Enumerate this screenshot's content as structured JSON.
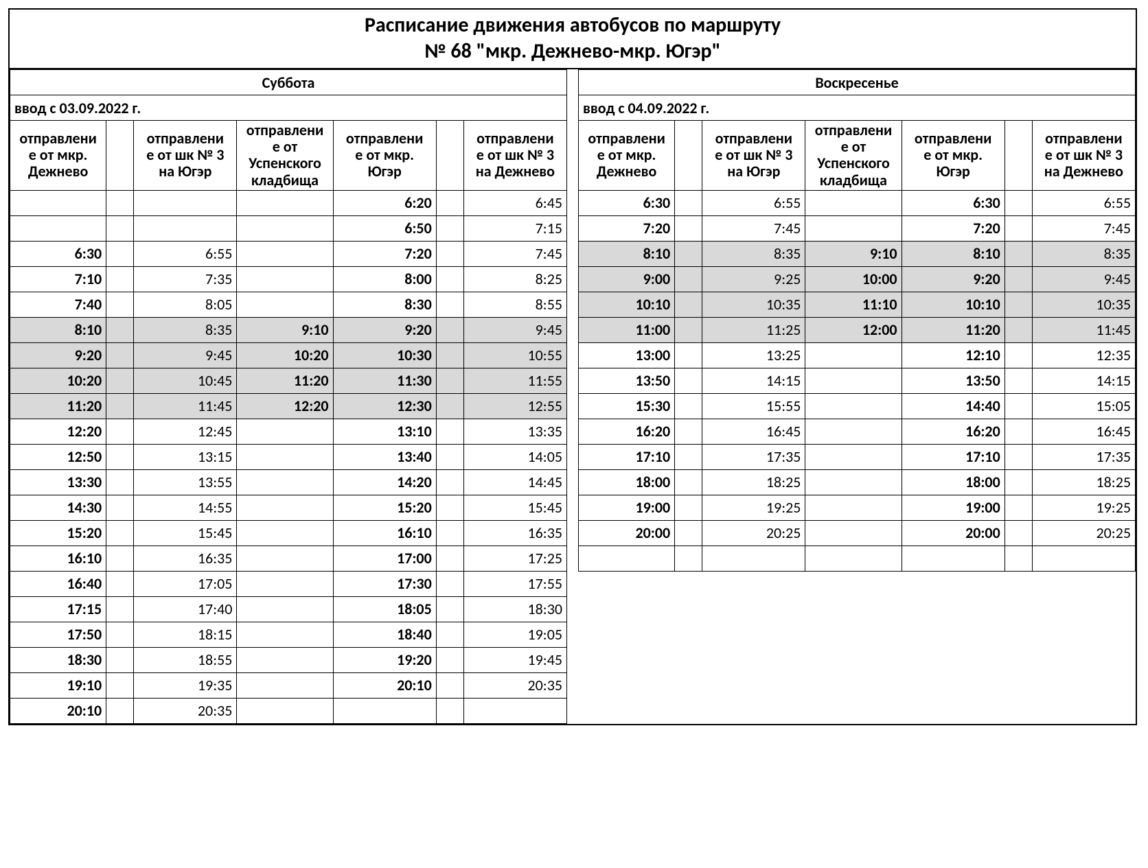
{
  "title_line1": "Расписание движения автобусов по маршруту",
  "title_line2": "№ 68     \"мкр. Дежнево-мкр. Югэр\"",
  "shaded_color": "#d9d9d9",
  "border_color": "#000000",
  "background_color": "#ffffff",
  "font_family": "Calibri, Arial, sans-serif",
  "saturday": {
    "day_label": "Суббота",
    "intro": "ввод  с 03.09.2022 г.",
    "headers": [
      "отправление от мкр. Дежнево",
      "",
      "отправление от шк № 3 на Югэр",
      "отправление от Успенского кладбища",
      "отправление от мкр. Югэр",
      "",
      "отправление от шк № 3 на Дежнево"
    ],
    "bold_cols": [
      true,
      false,
      false,
      true,
      true,
      false,
      false
    ],
    "rows": [
      {
        "cells": [
          "",
          "",
          "",
          "",
          "6:20",
          "",
          "6:45"
        ],
        "shaded": false
      },
      {
        "cells": [
          "",
          "",
          "",
          "",
          "6:50",
          "",
          "7:15"
        ],
        "shaded": false
      },
      {
        "cells": [
          "6:30",
          "",
          "6:55",
          "",
          "7:20",
          "",
          "7:45"
        ],
        "shaded": false
      },
      {
        "cells": [
          "7:10",
          "",
          "7:35",
          "",
          "8:00",
          "",
          "8:25"
        ],
        "shaded": false
      },
      {
        "cells": [
          "7:40",
          "",
          "8:05",
          "",
          "8:30",
          "",
          "8:55"
        ],
        "shaded": false
      },
      {
        "cells": [
          "8:10",
          "",
          "8:35",
          "9:10",
          "9:20",
          "",
          "9:45"
        ],
        "shaded": true
      },
      {
        "cells": [
          "9:20",
          "",
          "9:45",
          "10:20",
          "10:30",
          "",
          "10:55"
        ],
        "shaded": true
      },
      {
        "cells": [
          "10:20",
          "",
          "10:45",
          "11:20",
          "11:30",
          "",
          "11:55"
        ],
        "shaded": true
      },
      {
        "cells": [
          "11:20",
          "",
          "11:45",
          "12:20",
          "12:30",
          "",
          "12:55"
        ],
        "shaded": true
      },
      {
        "cells": [
          "12:20",
          "",
          "12:45",
          "",
          "13:10",
          "",
          "13:35"
        ],
        "shaded": false
      },
      {
        "cells": [
          "12:50",
          "",
          "13:15",
          "",
          "13:40",
          "",
          "14:05"
        ],
        "shaded": false
      },
      {
        "cells": [
          "13:30",
          "",
          "13:55",
          "",
          "14:20",
          "",
          "14:45"
        ],
        "shaded": false
      },
      {
        "cells": [
          "14:30",
          "",
          "14:55",
          "",
          "15:20",
          "",
          "15:45"
        ],
        "shaded": false
      },
      {
        "cells": [
          "15:20",
          "",
          "15:45",
          "",
          "16:10",
          "",
          "16:35"
        ],
        "shaded": false
      },
      {
        "cells": [
          "16:10",
          "",
          "16:35",
          "",
          "17:00",
          "",
          "17:25"
        ],
        "shaded": false
      },
      {
        "cells": [
          "16:40",
          "",
          "17:05",
          "",
          "17:30",
          "",
          "17:55"
        ],
        "shaded": false
      },
      {
        "cells": [
          "17:15",
          "",
          "17:40",
          "",
          "18:05",
          "",
          "18:30"
        ],
        "shaded": false
      },
      {
        "cells": [
          "17:50",
          "",
          "18:15",
          "",
          "18:40",
          "",
          "19:05"
        ],
        "shaded": false
      },
      {
        "cells": [
          "18:30",
          "",
          "18:55",
          "",
          "19:20",
          "",
          "19:45"
        ],
        "shaded": false
      },
      {
        "cells": [
          "19:10",
          "",
          "19:35",
          "",
          "20:10",
          "",
          "20:35"
        ],
        "shaded": false
      },
      {
        "cells": [
          "20:10",
          "",
          "20:35",
          "",
          "",
          "",
          ""
        ],
        "shaded": false
      }
    ]
  },
  "sunday": {
    "day_label": "Воскресенье",
    "intro": "ввод с 04.09.2022 г.",
    "headers": [
      "отправление от мкр. Дежнево",
      "",
      "отправление от шк № 3 на Югэр",
      "отправление от Успенского кладбища",
      "отправление от мкр. Югэр",
      "",
      "отправление от шк № 3 на Дежнево"
    ],
    "bold_cols": [
      true,
      false,
      false,
      true,
      true,
      false,
      false
    ],
    "rows": [
      {
        "cells": [
          "6:30",
          "",
          "6:55",
          "",
          "6:30",
          "",
          "6:55"
        ],
        "shaded": false
      },
      {
        "cells": [
          "7:20",
          "",
          "7:45",
          "",
          "7:20",
          "",
          "7:45"
        ],
        "shaded": false
      },
      {
        "cells": [
          "8:10",
          "",
          "8:35",
          "9:10",
          "8:10",
          "",
          "8:35"
        ],
        "shaded": true
      },
      {
        "cells": [
          "9:00",
          "",
          "9:25",
          "10:00",
          "9:20",
          "",
          "9:45"
        ],
        "shaded": true
      },
      {
        "cells": [
          "10:10",
          "",
          "10:35",
          "11:10",
          "10:10",
          "",
          "10:35"
        ],
        "shaded": true
      },
      {
        "cells": [
          "11:00",
          "",
          "11:25",
          "12:00",
          "11:20",
          "",
          "11:45"
        ],
        "shaded": true
      },
      {
        "cells": [
          "13:00",
          "",
          "13:25",
          "",
          "12:10",
          "",
          "12:35"
        ],
        "shaded": false
      },
      {
        "cells": [
          "13:50",
          "",
          "14:15",
          "",
          "13:50",
          "",
          "14:15"
        ],
        "shaded": false
      },
      {
        "cells": [
          "15:30",
          "",
          "15:55",
          "",
          "14:40",
          "",
          "15:05"
        ],
        "shaded": false
      },
      {
        "cells": [
          "16:20",
          "",
          "16:45",
          "",
          "16:20",
          "",
          "16:45"
        ],
        "shaded": false
      },
      {
        "cells": [
          "17:10",
          "",
          "17:35",
          "",
          "17:10",
          "",
          "17:35"
        ],
        "shaded": false
      },
      {
        "cells": [
          "18:00",
          "",
          "18:25",
          "",
          "18:00",
          "",
          "18:25"
        ],
        "shaded": false
      },
      {
        "cells": [
          "19:00",
          "",
          "19:25",
          "",
          "19:00",
          "",
          "19:25"
        ],
        "shaded": false
      },
      {
        "cells": [
          "20:00",
          "",
          "20:25",
          "",
          "20:00",
          "",
          "20:25"
        ],
        "shaded": false
      },
      {
        "cells": [
          "",
          "",
          "",
          "",
          "",
          "",
          ""
        ],
        "shaded": false
      }
    ]
  }
}
